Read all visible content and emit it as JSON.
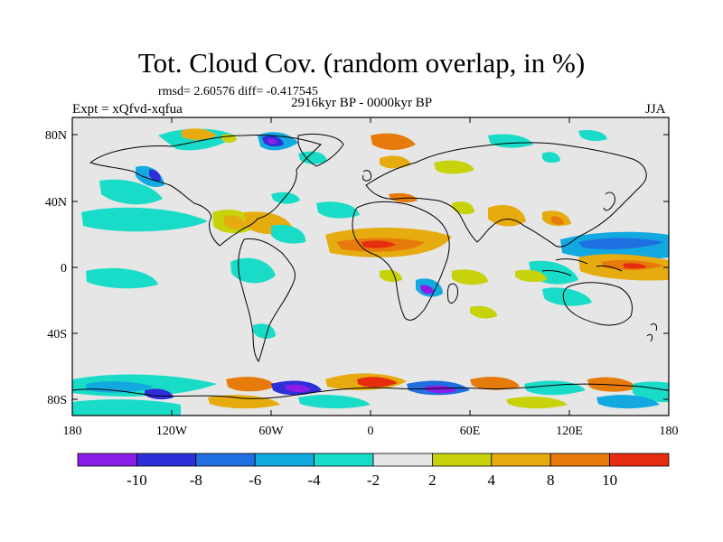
{
  "title": "Tot. Cloud Cov. (random overlap, in %)",
  "stats": "rmsd= 2.60576 diff= -0.417545",
  "period": "2916kyr BP - 0000kyr BP",
  "experiment": "Expt = xQfvd-xqfua",
  "season": "JJA",
  "lat_ticks": [
    "80N",
    "40N",
    "0",
    "40S",
    "80S"
  ],
  "lon_ticks": [
    "180",
    "120W",
    "60W",
    "0",
    "60E",
    "120E",
    "180"
  ],
  "colorbar": {
    "colors": [
      "#8a1ee6",
      "#2f2fd9",
      "#1f6fe0",
      "#12a9e0",
      "#19dcc8",
      "#e6e6e6",
      "#c8d20a",
      "#e6ac0f",
      "#e67a0a",
      "#e62d0f"
    ],
    "labels": [
      "-10",
      "-8",
      "-6",
      "-4",
      "-2",
      "2",
      "4",
      "8",
      "10"
    ]
  },
  "colors": {
    "background_field": "#e6e6e6",
    "frame": "#000000",
    "coastline": "#000000"
  }
}
